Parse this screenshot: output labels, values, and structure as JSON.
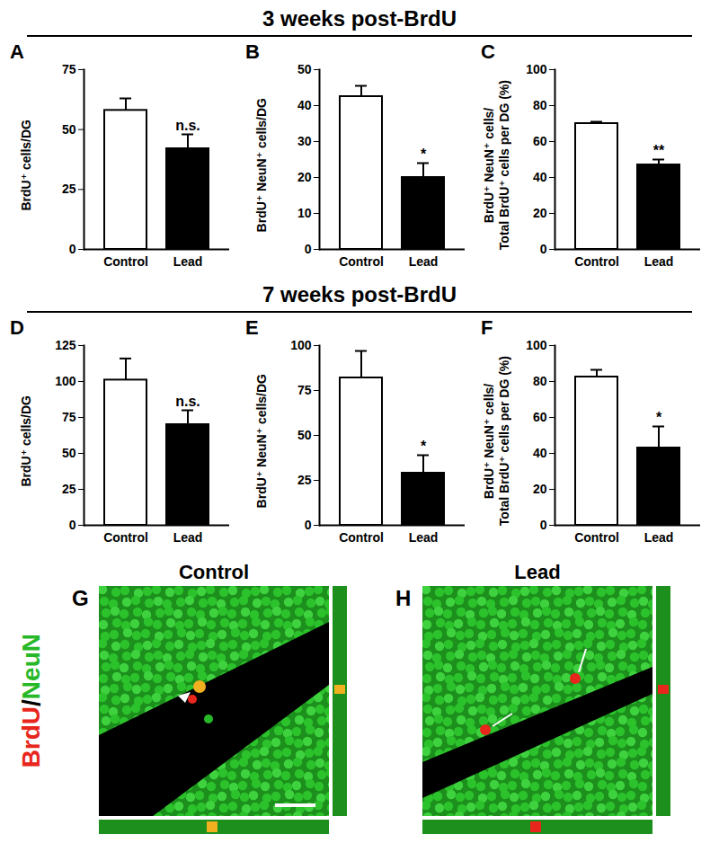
{
  "sections": [
    "3 weeks post-BrdU",
    "7 weeks post-BrdU"
  ],
  "chart_data": [
    {
      "type": "bar",
      "panel": "A",
      "section": "3 weeks post-BrdU",
      "y_label": "BrdU⁺ cells/DG",
      "categories": [
        "Control",
        "Lead"
      ],
      "values": [
        58,
        42
      ],
      "errors": [
        5,
        6
      ],
      "colors": [
        "#ffffff",
        "#000000"
      ],
      "annotations": [
        null,
        "n.s."
      ],
      "ylim": [
        0,
        75
      ],
      "yticks": [
        0,
        25,
        50,
        75
      ]
    },
    {
      "type": "bar",
      "panel": "B",
      "section": "3 weeks post-BrdU",
      "y_label": "BrdU⁺ NeuN⁺ cells/DG",
      "categories": [
        "Control",
        "Lead"
      ],
      "values": [
        42.5,
        20
      ],
      "errors": [
        3,
        4
      ],
      "colors": [
        "#ffffff",
        "#000000"
      ],
      "annotations": [
        null,
        "*"
      ],
      "ylim": [
        0,
        50
      ],
      "yticks": [
        0,
        10,
        20,
        30,
        40,
        50
      ]
    },
    {
      "type": "bar",
      "panel": "C",
      "section": "3 weeks post-BrdU",
      "y_label": "BrdU⁺ NeuN⁺ cells/\nTotal BrdU⁺ cells per DG (%)",
      "categories": [
        "Control",
        "Lead"
      ],
      "values": [
        70,
        47
      ],
      "errors": [
        1,
        3
      ],
      "colors": [
        "#ffffff",
        "#000000"
      ],
      "annotations": [
        null,
        "**"
      ],
      "ylim": [
        0,
        100
      ],
      "yticks": [
        0,
        20,
        40,
        60,
        80,
        100
      ]
    },
    {
      "type": "bar",
      "panel": "D",
      "section": "7 weeks post-BrdU",
      "y_label": "BrdU⁺ cells/DG",
      "categories": [
        "Control",
        "Lead"
      ],
      "values": [
        101,
        70
      ],
      "errors": [
        15,
        10
      ],
      "colors": [
        "#ffffff",
        "#000000"
      ],
      "annotations": [
        null,
        "n.s."
      ],
      "ylim": [
        0,
        125
      ],
      "yticks": [
        0,
        25,
        50,
        75,
        100,
        125
      ]
    },
    {
      "type": "bar",
      "panel": "E",
      "section": "7 weeks post-BrdU",
      "y_label": "BrdU⁺ NeuN⁺ cells/DG",
      "categories": [
        "Control",
        "Lead"
      ],
      "values": [
        82,
        29
      ],
      "errors": [
        15,
        10
      ],
      "colors": [
        "#ffffff",
        "#000000"
      ],
      "annotations": [
        null,
        "*"
      ],
      "ylim": [
        0,
        100
      ],
      "yticks": [
        0,
        25,
        50,
        75,
        100
      ]
    },
    {
      "type": "bar",
      "panel": "F",
      "section": "7 weeks post-BrdU",
      "y_label": "BrdU⁺ NeuN⁺ cells/\nTotal BrdU⁺ cells per DG (%)",
      "categories": [
        "Control",
        "Lead"
      ],
      "values": [
        82.5,
        43
      ],
      "errors": [
        4,
        12
      ],
      "colors": [
        "#ffffff",
        "#000000"
      ],
      "annotations": [
        null,
        "*"
      ],
      "ylim": [
        0,
        100
      ],
      "yticks": [
        0,
        20,
        40,
        60,
        80,
        100
      ]
    }
  ],
  "image_legend": [
    {
      "text": "BrdU",
      "color": "#e8261c"
    },
    {
      "text": "/",
      "color": "#000000"
    },
    {
      "text": "NeuN",
      "color": "#27b827"
    }
  ],
  "image_panels": [
    {
      "panel": "G",
      "title": "Control"
    },
    {
      "panel": "H",
      "title": "Lead"
    }
  ]
}
